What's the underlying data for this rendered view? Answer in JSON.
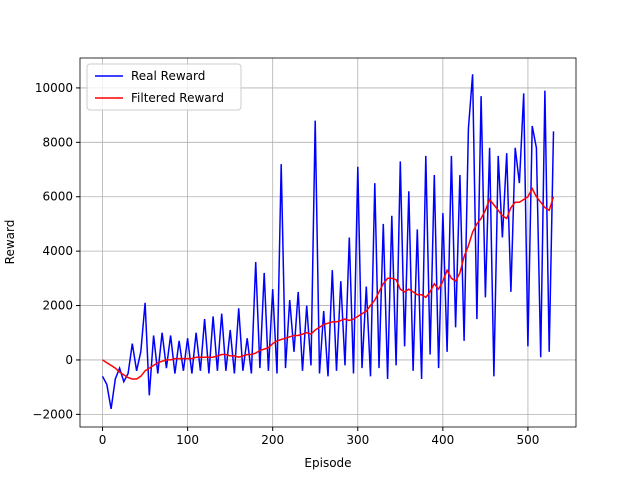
{
  "chart_data": {
    "type": "line",
    "xlabel": "Episode",
    "ylabel": "Reward",
    "x": [
      0,
      5,
      10,
      15,
      20,
      25,
      30,
      35,
      40,
      45,
      50,
      55,
      60,
      65,
      70,
      75,
      80,
      85,
      90,
      95,
      100,
      105,
      110,
      115,
      120,
      125,
      130,
      135,
      140,
      145,
      150,
      155,
      160,
      165,
      170,
      175,
      180,
      185,
      190,
      195,
      200,
      205,
      210,
      215,
      220,
      225,
      230,
      235,
      240,
      245,
      250,
      255,
      260,
      265,
      270,
      275,
      280,
      285,
      290,
      295,
      300,
      305,
      310,
      315,
      320,
      325,
      330,
      335,
      340,
      345,
      350,
      355,
      360,
      365,
      370,
      375,
      380,
      385,
      390,
      395,
      400,
      405,
      410,
      415,
      420,
      425,
      430,
      435,
      440,
      445,
      450,
      455,
      460,
      465,
      470,
      475,
      480,
      485,
      490,
      495,
      500,
      505,
      510,
      515,
      520,
      525,
      530
    ],
    "series": [
      {
        "name": "Real Reward",
        "color": "#0000ff",
        "values": [
          -600,
          -900,
          -1800,
          -700,
          -300,
          -800,
          -500,
          600,
          -400,
          300,
          2100,
          -1300,
          900,
          -500,
          1000,
          -300,
          900,
          -500,
          700,
          -400,
          800,
          -500,
          1000,
          -400,
          1500,
          -500,
          1600,
          -400,
          1700,
          -400,
          1100,
          -500,
          1900,
          -400,
          800,
          -500,
          3600,
          -300,
          3200,
          -400,
          2600,
          -500,
          7200,
          -300,
          2200,
          300,
          2500,
          -400,
          2000,
          -200,
          8800,
          -500,
          1800,
          -600,
          3300,
          -400,
          2900,
          -200,
          4500,
          -500,
          7100,
          -300,
          2700,
          -600,
          6500,
          -300,
          5000,
          -700,
          5300,
          -200,
          7300,
          500,
          6200,
          -400,
          4800,
          -700,
          7500,
          200,
          6800,
          -300,
          5400,
          300,
          7500,
          1200,
          6800,
          700,
          8500,
          10500,
          1500,
          9700,
          2300,
          7800,
          -600,
          7500,
          4500,
          7600,
          2500,
          7800,
          6500,
          9800,
          500,
          8600,
          7800,
          100,
          9900,
          300,
          8400
        ]
      },
      {
        "name": "Filtered Reward",
        "color": "#ff0000",
        "values": [
          0,
          -100,
          -200,
          -300,
          -450,
          -550,
          -650,
          -700,
          -700,
          -600,
          -400,
          -300,
          -200,
          -100,
          -50,
          0,
          0,
          50,
          50,
          50,
          50,
          50,
          100,
          100,
          100,
          100,
          100,
          150,
          200,
          200,
          150,
          150,
          100,
          150,
          200,
          200,
          250,
          350,
          400,
          450,
          600,
          700,
          750,
          800,
          850,
          900,
          900,
          950,
          1000,
          950,
          1100,
          1200,
          1300,
          1350,
          1400,
          1400,
          1450,
          1500,
          1450,
          1500,
          1600,
          1700,
          1800,
          2000,
          2200,
          2500,
          2800,
          3000,
          3000,
          2950,
          2600,
          2500,
          2600,
          2500,
          2400,
          2400,
          2300,
          2500,
          2800,
          2600,
          2900,
          3300,
          3000,
          2900,
          3200,
          3800,
          4200,
          4700,
          5000,
          5200,
          5500,
          5900,
          5700,
          5500,
          5300,
          5200,
          5600,
          5800,
          5800,
          5900,
          6000,
          6300,
          6000,
          5800,
          5600,
          5500,
          6000
        ]
      }
    ],
    "xlim": [
      -26.5,
      556.5
    ],
    "ylim": [
      -2465,
      11100
    ],
    "xticks": [
      0,
      100,
      200,
      300,
      400,
      500
    ],
    "yticks": [
      {
        "value": -2000,
        "label": "−2000"
      },
      0,
      2000,
      4000,
      6000,
      8000,
      10000
    ],
    "grid": true,
    "legend": "upper-left"
  }
}
